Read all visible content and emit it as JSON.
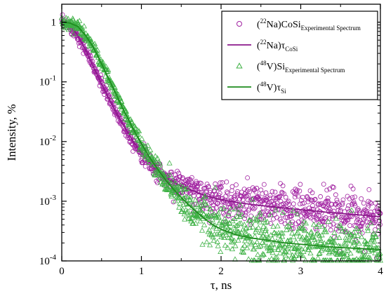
{
  "chart_data": {
    "type": "scatter",
    "xlabel": "τ, ns",
    "ylabel": "Intensity, %",
    "xlim": [
      0,
      4
    ],
    "ylim": [
      0.0001,
      2
    ],
    "y_scale": "log",
    "x_ticks": [
      "0",
      "1",
      "2",
      "3",
      "4"
    ],
    "y_ticks": [
      "1",
      "10-1",
      "10-2",
      "10-3",
      "10-4"
    ],
    "legend_position": "top-right",
    "grid": false,
    "series": [
      {
        "name": "(22Na)CoSiExperimental Spectrum",
        "legend": {
          "sup": "22",
          "pre": "(",
          "mid": "Na)CoSi",
          "sub": "Experimental Spectrum"
        },
        "kind": "scatter",
        "marker": "circle",
        "color": "#a020a0",
        "x": [
          0,
          0.1,
          0.2,
          0.3,
          0.4,
          0.5,
          0.6,
          0.7,
          0.8,
          0.9,
          1.0,
          1.1,
          1.2,
          1.3,
          1.4,
          1.5,
          1.6,
          1.7,
          1.8,
          1.9,
          2.0,
          2.2,
          2.4,
          2.6,
          2.8,
          3.0,
          3.2,
          3.4,
          3.6,
          3.8,
          4.0
        ],
        "y": [
          0.97,
          0.88,
          0.6,
          0.34,
          0.175,
          0.092,
          0.05,
          0.028,
          0.0165,
          0.01,
          0.0065,
          0.0045,
          0.0032,
          0.0025,
          0.0021,
          0.0018,
          0.0016,
          0.0014,
          0.00125,
          0.00115,
          0.00107,
          0.00095,
          0.00088,
          0.00082,
          0.00077,
          0.00072,
          0.00068,
          0.00064,
          0.00061,
          0.00058,
          0.00055
        ]
      },
      {
        "name": "(22Na)τCoSi",
        "legend": {
          "sup": "22",
          "pre": "(",
          "mid": "Na)τ",
          "sub": "CoSi"
        },
        "kind": "line",
        "color": "#8b1a8b",
        "x": [
          0,
          0.1,
          0.2,
          0.3,
          0.4,
          0.5,
          0.6,
          0.7,
          0.8,
          0.9,
          1.0,
          1.1,
          1.2,
          1.3,
          1.4,
          1.5,
          1.6,
          1.7,
          1.8,
          1.9,
          2.0,
          2.2,
          2.4,
          2.6,
          2.8,
          3.0,
          3.2,
          3.4,
          3.6,
          3.8,
          4.0
        ],
        "y": [
          0.97,
          0.88,
          0.6,
          0.34,
          0.175,
          0.092,
          0.05,
          0.028,
          0.0165,
          0.01,
          0.0065,
          0.0045,
          0.0032,
          0.0025,
          0.0021,
          0.0018,
          0.0016,
          0.0014,
          0.00125,
          0.00115,
          0.00107,
          0.00095,
          0.00088,
          0.00082,
          0.00077,
          0.00072,
          0.00068,
          0.00064,
          0.00061,
          0.00058,
          0.00055
        ]
      },
      {
        "name": "(48V)SiExperimental Spectrum",
        "legend": {
          "sup": "48",
          "pre": "(",
          "mid": "V)Si",
          "sub": "Experimental Spectrum"
        },
        "kind": "scatter",
        "marker": "triangle",
        "color": "#3cb043",
        "x": [
          0,
          0.1,
          0.2,
          0.3,
          0.4,
          0.5,
          0.6,
          0.7,
          0.8,
          0.9,
          1.0,
          1.1,
          1.2,
          1.3,
          1.4,
          1.5,
          1.6,
          1.7,
          1.8,
          1.9,
          2.0,
          2.2,
          2.4,
          2.6,
          2.8,
          3.0,
          3.2,
          3.4,
          3.6,
          3.8,
          4.0
        ],
        "y": [
          1.0,
          0.97,
          0.85,
          0.6,
          0.37,
          0.2,
          0.105,
          0.055,
          0.029,
          0.016,
          0.0092,
          0.0055,
          0.0035,
          0.0023,
          0.0016,
          0.00115,
          0.00085,
          0.00065,
          0.0005,
          0.0004,
          0.00034,
          0.00027,
          0.00024,
          0.00022,
          0.0002,
          0.00019,
          0.00018,
          0.00017,
          0.000165,
          0.00016,
          0.000155
        ]
      },
      {
        "name": "(48V)τSi",
        "legend": {
          "sup": "48",
          "pre": "(",
          "mid": "V)τ",
          "sub": "Si"
        },
        "kind": "line",
        "color": "#1e8c1e",
        "x": [
          0,
          0.1,
          0.2,
          0.3,
          0.4,
          0.5,
          0.6,
          0.7,
          0.8,
          0.9,
          1.0,
          1.1,
          1.2,
          1.3,
          1.4,
          1.5,
          1.6,
          1.7,
          1.8,
          1.9,
          2.0,
          2.2,
          2.4,
          2.6,
          2.8,
          3.0,
          3.2,
          3.4,
          3.6,
          3.8,
          4.0
        ],
        "y": [
          1.0,
          0.97,
          0.85,
          0.6,
          0.37,
          0.2,
          0.105,
          0.055,
          0.029,
          0.016,
          0.0092,
          0.0055,
          0.0035,
          0.0023,
          0.0016,
          0.00115,
          0.00085,
          0.00065,
          0.0005,
          0.0004,
          0.00034,
          0.00027,
          0.00024,
          0.00022,
          0.0002,
          0.00019,
          0.00018,
          0.00017,
          0.000165,
          0.00016,
          0.000155
        ]
      }
    ]
  }
}
